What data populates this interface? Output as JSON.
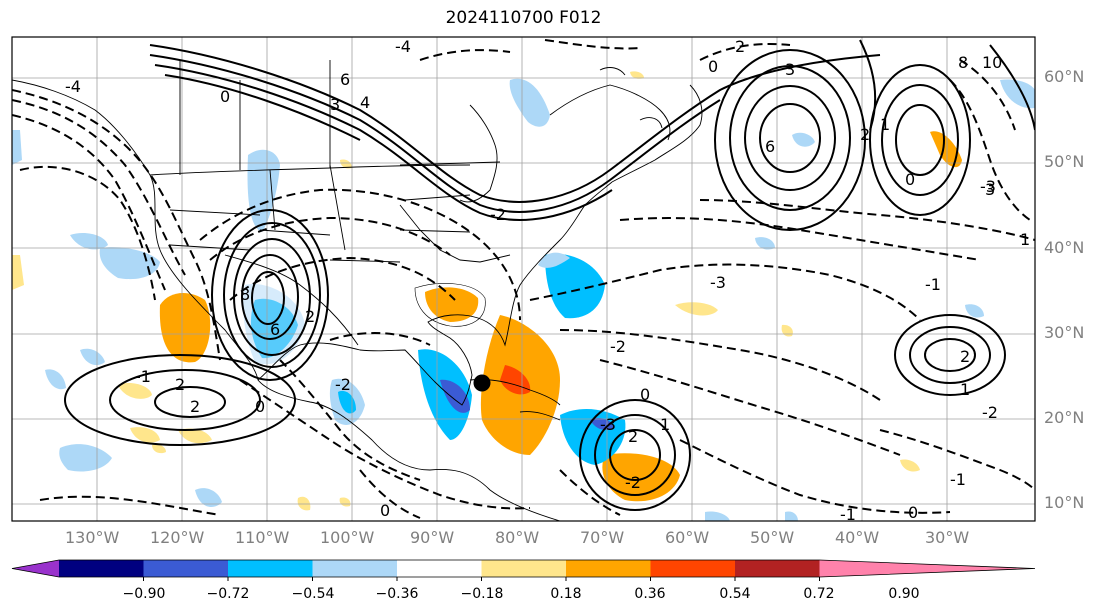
{
  "title": "2024110700 F012",
  "map": {
    "lon_labels": [
      "130°W",
      "120°W",
      "110°W",
      "100°W",
      "90°W",
      "80°W",
      "70°W",
      "60°W",
      "50°W",
      "40°W",
      "30°W"
    ],
    "lat_labels": [
      "60°N",
      "50°N",
      "40°N",
      "30°N",
      "20°N",
      "10°N"
    ],
    "contour_labels": [
      "-4",
      "-4",
      "-3",
      "-2",
      "-2",
      "-2",
      "-3",
      "-3",
      "-2",
      "-2",
      "-1",
      "-1",
      "-1",
      "-1",
      "0",
      "0",
      "0",
      "0",
      "0",
      "0",
      "0",
      "1",
      "1",
      "1",
      "1",
      "2",
      "2",
      "2",
      "2",
      "2",
      "2",
      "2",
      "3",
      "3",
      "3",
      "4",
      "6",
      "6",
      "6",
      "8",
      "8",
      "10"
    ],
    "marker": "black-dot-marker"
  },
  "colorbar": {
    "ticks": [
      "−0.90",
      "−0.72",
      "−0.54",
      "−0.36",
      "−0.18",
      "0.18",
      "0.36",
      "0.54",
      "0.72",
      "0.90"
    ],
    "colors": [
      "#9932cc",
      "#000080",
      "#3b5bd4",
      "#00bfff",
      "#add8f7",
      "#ffffff",
      "#ffe68c",
      "#ffa500",
      "#ff4500",
      "#b22222",
      "#ff82ab"
    ]
  }
}
